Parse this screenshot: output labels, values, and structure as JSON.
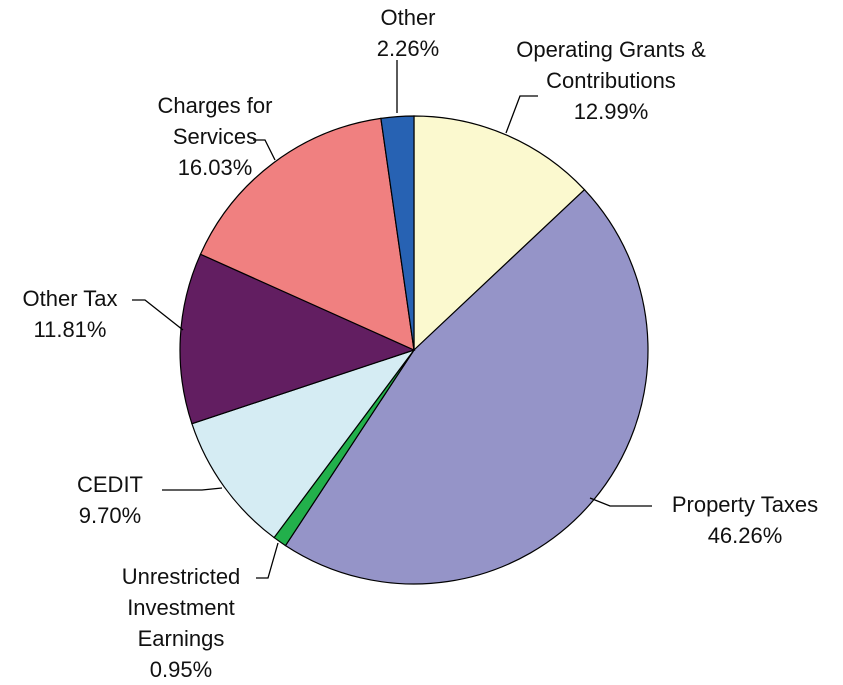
{
  "chart_data": {
    "type": "pie",
    "categories": [
      "Operating Grants & Contributions",
      "Property Taxes",
      "Unrestricted Investment Earnings",
      "CEDIT",
      "Other Tax",
      "Charges for Services",
      "Other"
    ],
    "values": [
      12.99,
      46.26,
      0.95,
      9.7,
      11.81,
      16.03,
      2.26
    ],
    "value_labels": [
      "12.99%",
      "46.26%",
      "0.95%",
      "9.70%",
      "11.81%",
      "16.03%",
      "2.26%"
    ],
    "colors": [
      "#fbf9cf",
      "#9594c8",
      "#22b04b",
      "#d5ecf3",
      "#621e61",
      "#f08080",
      "#2762b3"
    ]
  }
}
